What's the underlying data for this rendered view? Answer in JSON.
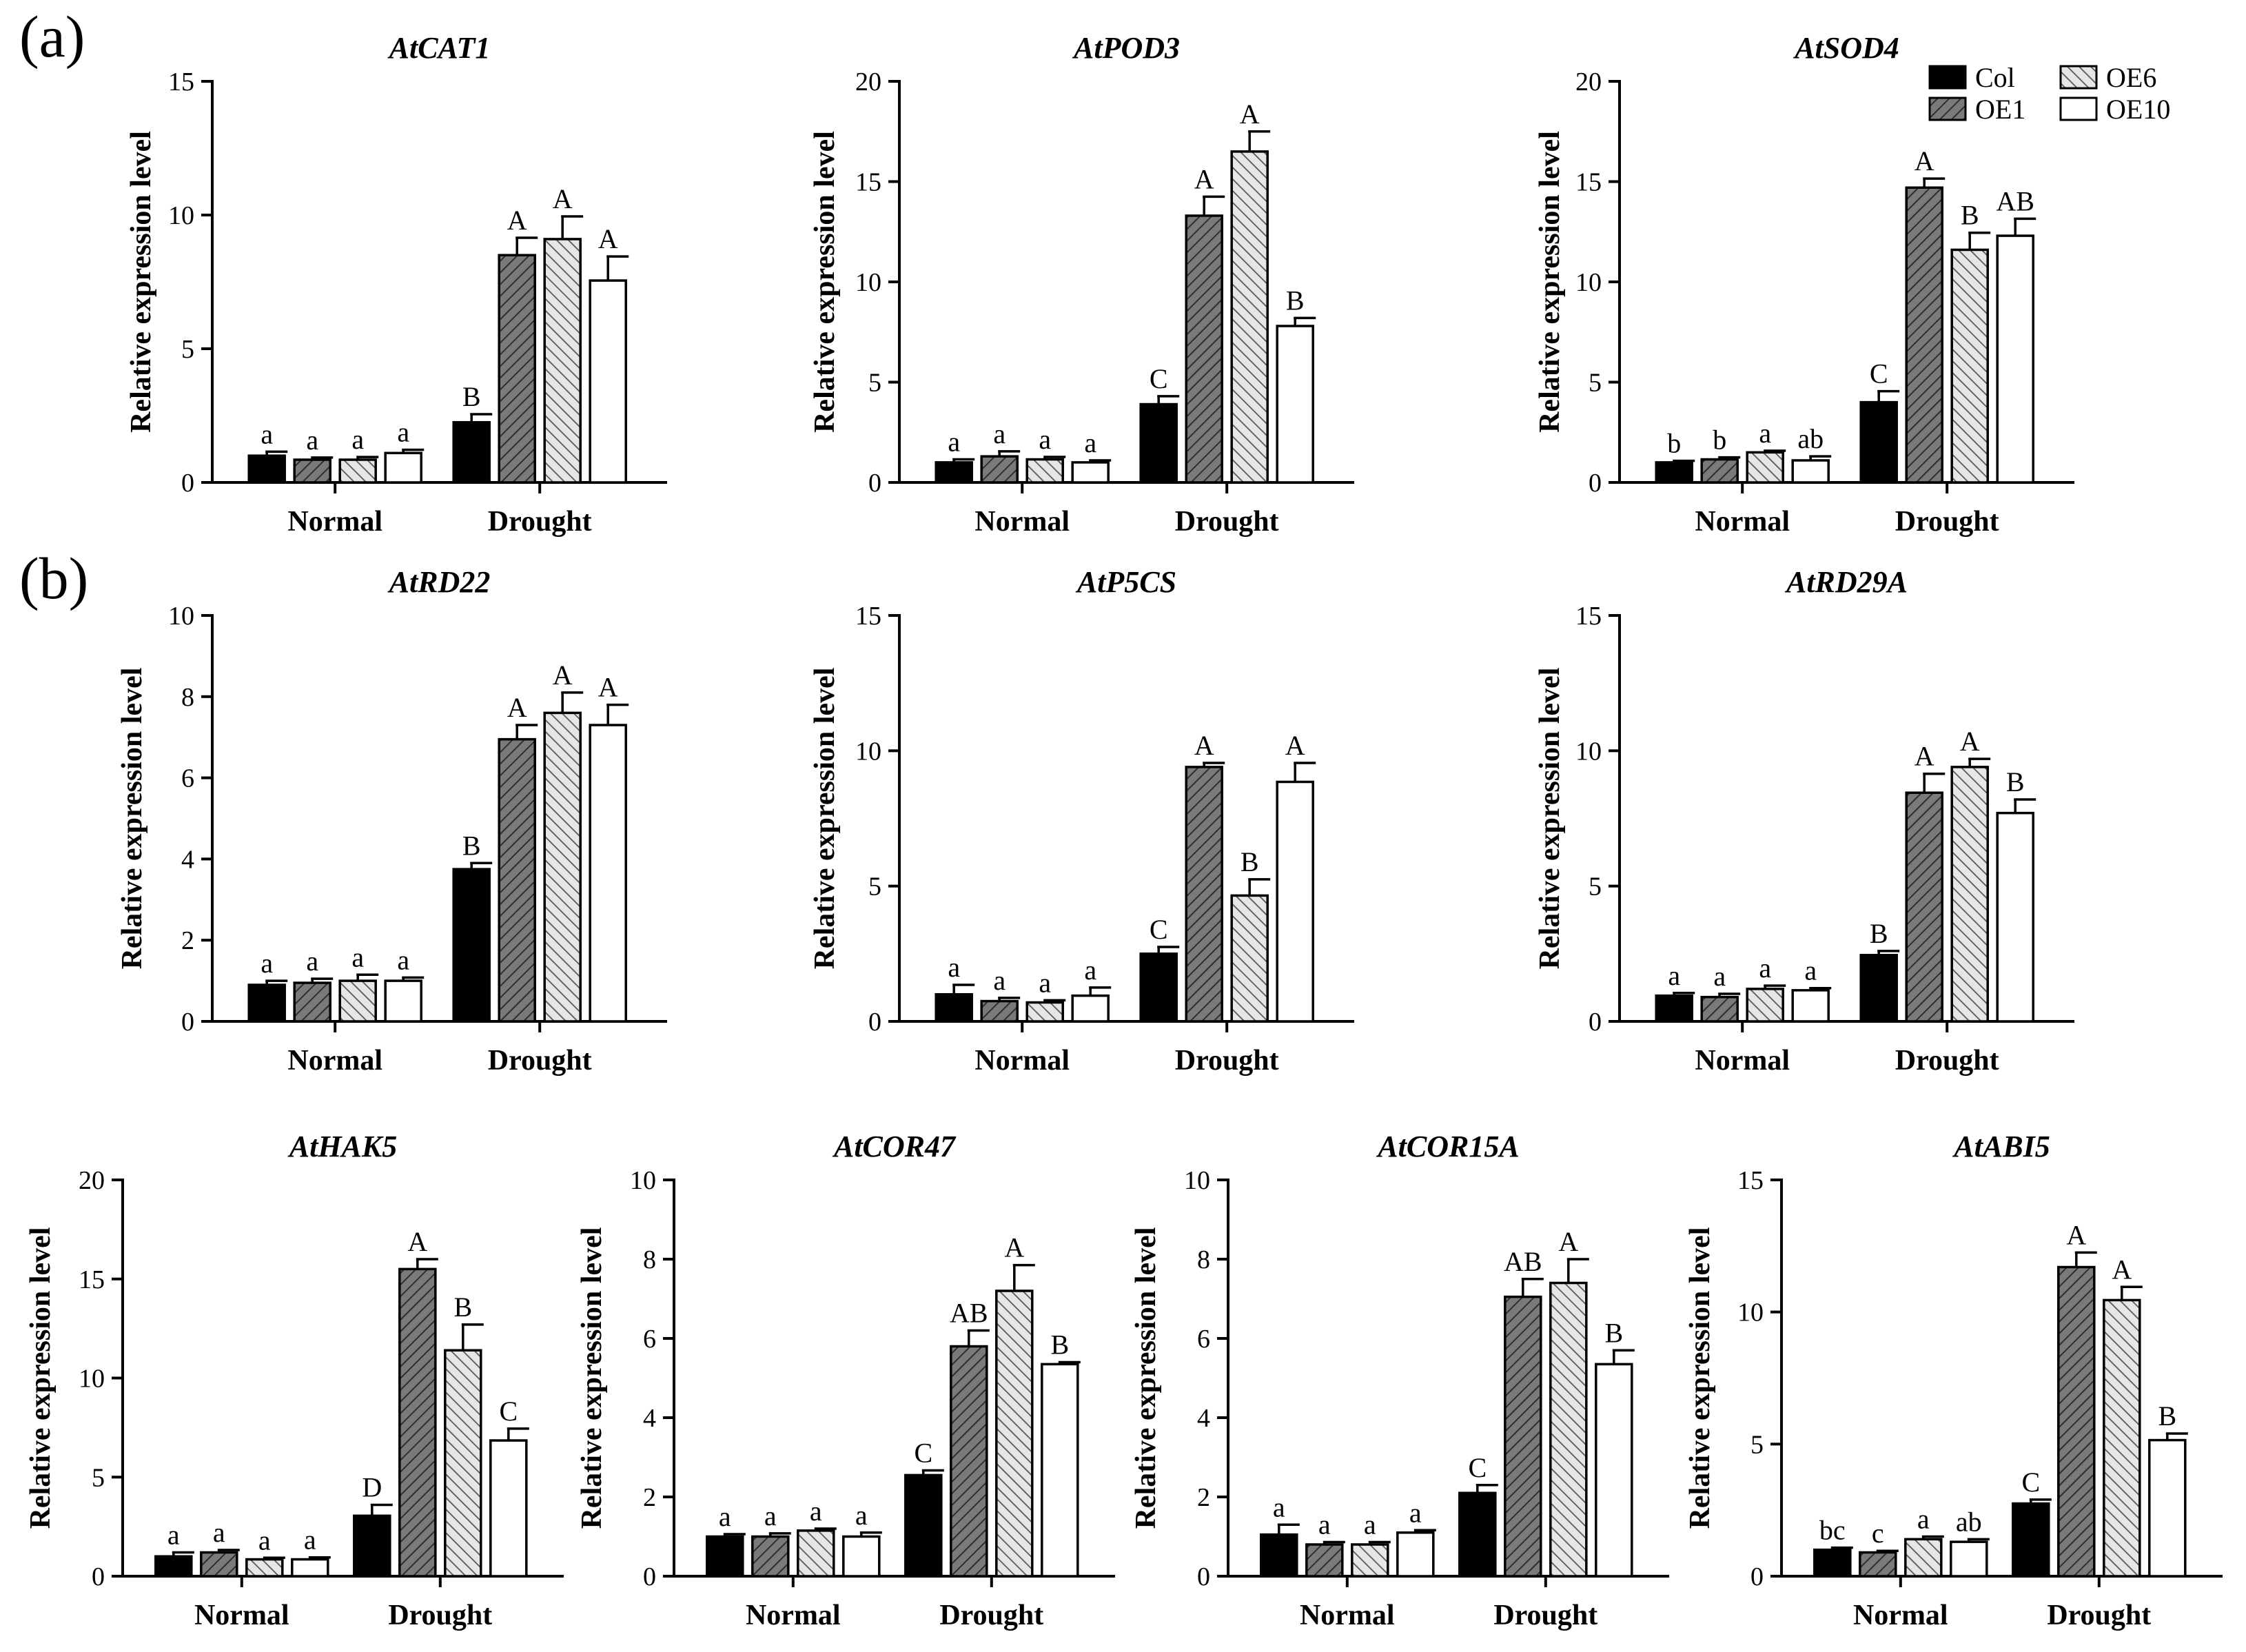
{
  "panel_labels": {
    "a": "(a)",
    "b": "(b)"
  },
  "chart_data": [
    {
      "type": "bar",
      "title": "AtCAT1",
      "ylabel": "Relative expression level",
      "xlabel": "",
      "categories": [
        "Normal",
        "Drought"
      ],
      "ylim": [
        0,
        15
      ],
      "yticks": [
        0,
        5,
        10,
        15
      ],
      "series": [
        {
          "name": "Col",
          "values": [
            1.0,
            2.25
          ],
          "errors": [
            0.15,
            0.3
          ],
          "letters": [
            "a",
            "B"
          ]
        },
        {
          "name": "OE1",
          "values": [
            0.85,
            8.5
          ],
          "errors": [
            0.08,
            0.65
          ],
          "letters": [
            "a",
            "A"
          ]
        },
        {
          "name": "OE6",
          "values": [
            0.85,
            9.1
          ],
          "errors": [
            0.1,
            0.85
          ],
          "letters": [
            "a",
            "A"
          ]
        },
        {
          "name": "OE10",
          "values": [
            1.1,
            7.55
          ],
          "errors": [
            0.12,
            0.9
          ],
          "letters": [
            "a",
            "A"
          ]
        }
      ]
    },
    {
      "type": "bar",
      "title": "AtPOD3",
      "ylabel": "Relative expression level",
      "xlabel": "",
      "categories": [
        "Normal",
        "Drought"
      ],
      "ylim": [
        0,
        20
      ],
      "yticks": [
        0,
        5,
        10,
        15,
        20
      ],
      "series": [
        {
          "name": "Col",
          "values": [
            1.0,
            3.9
          ],
          "errors": [
            0.15,
            0.4
          ],
          "letters": [
            "a",
            "C"
          ]
        },
        {
          "name": "OE1",
          "values": [
            1.3,
            13.3
          ],
          "errors": [
            0.25,
            0.95
          ],
          "letters": [
            "a",
            "A"
          ]
        },
        {
          "name": "OE6",
          "values": [
            1.15,
            16.5
          ],
          "errors": [
            0.12,
            1.0
          ],
          "letters": [
            "a",
            "A"
          ]
        },
        {
          "name": "OE10",
          "values": [
            1.0,
            7.8
          ],
          "errors": [
            0.1,
            0.4
          ],
          "letters": [
            "a",
            "B"
          ]
        }
      ]
    },
    {
      "type": "bar",
      "title": "AtSOD4",
      "ylabel": "Relative expression level",
      "xlabel": "",
      "categories": [
        "Normal",
        "Drought"
      ],
      "ylim": [
        0,
        20
      ],
      "yticks": [
        0,
        5,
        10,
        15,
        20
      ],
      "series": [
        {
          "name": "Col",
          "values": [
            1.0,
            4.0
          ],
          "errors": [
            0.08,
            0.55
          ],
          "letters": [
            "b",
            "C"
          ]
        },
        {
          "name": "OE1",
          "values": [
            1.15,
            14.7
          ],
          "errors": [
            0.1,
            0.45
          ],
          "letters": [
            "b",
            "A"
          ]
        },
        {
          "name": "OE6",
          "values": [
            1.5,
            11.6
          ],
          "errors": [
            0.08,
            0.85
          ],
          "letters": [
            "a",
            "B"
          ]
        },
        {
          "name": "OE10",
          "values": [
            1.1,
            12.3
          ],
          "errors": [
            0.2,
            0.85
          ],
          "letters": [
            "ab",
            "AB"
          ]
        }
      ]
    },
    {
      "type": "bar",
      "title": "AtRD22",
      "ylabel": "Relative expression level",
      "xlabel": "",
      "categories": [
        "Normal",
        "Drought"
      ],
      "ylim": [
        0,
        10
      ],
      "yticks": [
        0,
        2,
        4,
        6,
        8,
        10
      ],
      "series": [
        {
          "name": "Col",
          "values": [
            0.9,
            3.75
          ],
          "errors": [
            0.1,
            0.15
          ],
          "letters": [
            "a",
            "B"
          ]
        },
        {
          "name": "OE1",
          "values": [
            0.95,
            6.95
          ],
          "errors": [
            0.1,
            0.35
          ],
          "letters": [
            "a",
            "A"
          ]
        },
        {
          "name": "OE6",
          "values": [
            1.0,
            7.6
          ],
          "errors": [
            0.15,
            0.5
          ],
          "letters": [
            "a",
            "A"
          ]
        },
        {
          "name": "OE10",
          "values": [
            1.0,
            7.3
          ],
          "errors": [
            0.08,
            0.5
          ],
          "letters": [
            "a",
            "A"
          ]
        }
      ]
    },
    {
      "type": "bar",
      "title": "AtP5CS",
      "ylabel": "Relative expression level",
      "xlabel": "",
      "categories": [
        "Normal",
        "Drought"
      ],
      "ylim": [
        0,
        15
      ],
      "yticks": [
        0,
        5,
        10,
        15
      ],
      "series": [
        {
          "name": "Col",
          "values": [
            1.0,
            2.5
          ],
          "errors": [
            0.35,
            0.25
          ],
          "letters": [
            "a",
            "C"
          ]
        },
        {
          "name": "OE1",
          "values": [
            0.75,
            9.4
          ],
          "errors": [
            0.12,
            0.15
          ],
          "letters": [
            "a",
            "A"
          ]
        },
        {
          "name": "OE6",
          "values": [
            0.7,
            4.65
          ],
          "errors": [
            0.08,
            0.6
          ],
          "letters": [
            "a",
            "B"
          ]
        },
        {
          "name": "OE10",
          "values": [
            0.95,
            8.85
          ],
          "errors": [
            0.3,
            0.7
          ],
          "letters": [
            "a",
            "A"
          ]
        }
      ]
    },
    {
      "type": "bar",
      "title": "AtRD29A",
      "ylabel": "Relative expression level",
      "xlabel": "",
      "categories": [
        "Normal",
        "Drought"
      ],
      "ylim": [
        0,
        15
      ],
      "yticks": [
        0,
        5,
        10,
        15
      ],
      "series": [
        {
          "name": "Col",
          "values": [
            0.95,
            2.45
          ],
          "errors": [
            0.1,
            0.15
          ],
          "letters": [
            "a",
            "B"
          ]
        },
        {
          "name": "OE1",
          "values": [
            0.9,
            8.45
          ],
          "errors": [
            0.12,
            0.7
          ],
          "letters": [
            "a",
            "A"
          ]
        },
        {
          "name": "OE6",
          "values": [
            1.2,
            9.4
          ],
          "errors": [
            0.12,
            0.3
          ],
          "letters": [
            "a",
            "A"
          ]
        },
        {
          "name": "OE10",
          "values": [
            1.15,
            7.7
          ],
          "errors": [
            0.08,
            0.5
          ],
          "letters": [
            "a",
            "B"
          ]
        }
      ]
    },
    {
      "type": "bar",
      "title": "AtHAK5",
      "ylabel": "Relative expression level",
      "xlabel": "",
      "categories": [
        "Normal",
        "Drought"
      ],
      "ylim": [
        0,
        20
      ],
      "yticks": [
        0,
        5,
        10,
        15,
        20
      ],
      "series": [
        {
          "name": "Col",
          "values": [
            1.0,
            3.05
          ],
          "errors": [
            0.2,
            0.55
          ],
          "letters": [
            "a",
            "D"
          ]
        },
        {
          "name": "OE1",
          "values": [
            1.2,
            15.5
          ],
          "errors": [
            0.12,
            0.5
          ],
          "letters": [
            "a",
            "A"
          ]
        },
        {
          "name": "OE6",
          "values": [
            0.85,
            11.4
          ],
          "errors": [
            0.08,
            1.3
          ],
          "letters": [
            "a",
            "B"
          ]
        },
        {
          "name": "OE10",
          "values": [
            0.85,
            6.85
          ],
          "errors": [
            0.1,
            0.6
          ],
          "letters": [
            "a",
            "C"
          ]
        }
      ]
    },
    {
      "type": "bar",
      "title": "AtCOR47",
      "ylabel": "Relative expression level",
      "xlabel": "",
      "categories": [
        "Normal",
        "Drought"
      ],
      "ylim": [
        0,
        10
      ],
      "yticks": [
        0,
        2,
        4,
        6,
        8,
        10
      ],
      "series": [
        {
          "name": "Col",
          "values": [
            1.0,
            2.55
          ],
          "errors": [
            0.06,
            0.12
          ],
          "letters": [
            "a",
            "C"
          ]
        },
        {
          "name": "OE1",
          "values": [
            1.0,
            5.8
          ],
          "errors": [
            0.08,
            0.4
          ],
          "letters": [
            "a",
            "AB"
          ]
        },
        {
          "name": "OE6",
          "values": [
            1.15,
            7.2
          ],
          "errors": [
            0.05,
            0.65
          ],
          "letters": [
            "a",
            "A"
          ]
        },
        {
          "name": "OE10",
          "values": [
            1.0,
            5.35
          ],
          "errors": [
            0.1,
            0.05
          ],
          "letters": [
            "a",
            "B"
          ]
        }
      ]
    },
    {
      "type": "bar",
      "title": "AtCOR15A",
      "ylabel": "Relative expression level",
      "xlabel": "",
      "categories": [
        "Normal",
        "Drought"
      ],
      "ylim": [
        0,
        10
      ],
      "yticks": [
        0,
        2,
        4,
        6,
        8,
        10
      ],
      "series": [
        {
          "name": "Col",
          "values": [
            1.05,
            2.1
          ],
          "errors": [
            0.25,
            0.2
          ],
          "letters": [
            "a",
            "C"
          ]
        },
        {
          "name": "OE1",
          "values": [
            0.8,
            7.05
          ],
          "errors": [
            0.06,
            0.45
          ],
          "letters": [
            "a",
            "AB"
          ]
        },
        {
          "name": "OE6",
          "values": [
            0.8,
            7.4
          ],
          "errors": [
            0.06,
            0.6
          ],
          "letters": [
            "a",
            "A"
          ]
        },
        {
          "name": "OE10",
          "values": [
            1.1,
            5.35
          ],
          "errors": [
            0.06,
            0.35
          ],
          "letters": [
            "a",
            "B"
          ]
        }
      ]
    },
    {
      "type": "bar",
      "title": "AtABI5",
      "ylabel": "Relative expression level",
      "xlabel": "",
      "categories": [
        "Normal",
        "Drought"
      ],
      "ylim": [
        0,
        15
      ],
      "yticks": [
        0,
        5,
        10,
        15
      ],
      "series": [
        {
          "name": "Col",
          "values": [
            1.0,
            2.75
          ],
          "errors": [
            0.08,
            0.15
          ],
          "letters": [
            "bc",
            "C"
          ]
        },
        {
          "name": "OE1",
          "values": [
            0.9,
            11.7
          ],
          "errors": [
            0.06,
            0.55
          ],
          "letters": [
            "c",
            "A"
          ]
        },
        {
          "name": "OE6",
          "values": [
            1.4,
            10.45
          ],
          "errors": [
            0.1,
            0.5
          ],
          "letters": [
            "a",
            "A"
          ]
        },
        {
          "name": "OE10",
          "values": [
            1.3,
            5.15
          ],
          "errors": [
            0.1,
            0.25
          ],
          "letters": [
            "ab",
            "B"
          ]
        }
      ]
    }
  ],
  "legend": {
    "entries": [
      {
        "name": "Col",
        "fill": "#000000"
      },
      {
        "name": "OE1",
        "fill": "#7a7a7a"
      },
      {
        "name": "OE6",
        "fill": "#d9d9d9"
      },
      {
        "name": "OE10",
        "fill": "#ffffff"
      }
    ]
  },
  "colors": {
    "col": "#000000",
    "oe1": "#7a7a7a",
    "oe6": "#d9d9d9",
    "oe10": "#ffffff",
    "stroke": "#000000"
  }
}
